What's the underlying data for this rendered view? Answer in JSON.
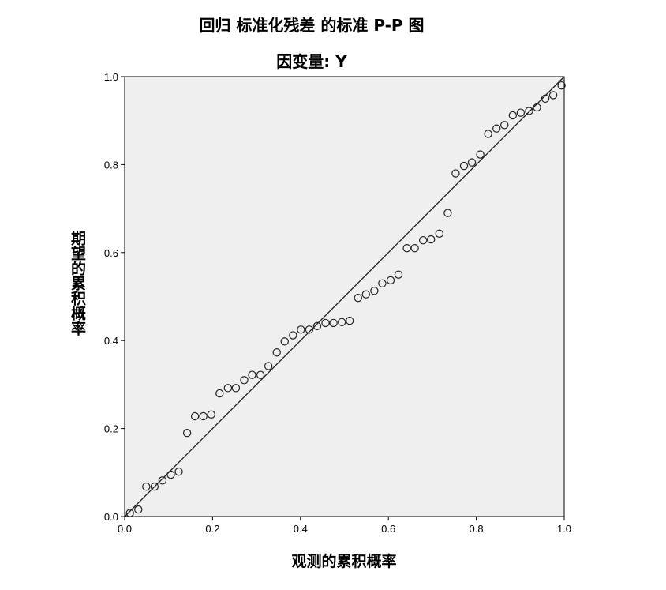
{
  "chart_data": {
    "type": "scatter",
    "title": "回归 标准化残差 的标准 P-P 图",
    "subtitle": "因变量: Y",
    "xlabel": "观测的累积概率",
    "ylabel": "期望的累积概率",
    "xlim": [
      0.0,
      1.0
    ],
    "ylim": [
      0.0,
      1.0
    ],
    "xticks": [
      "0.0",
      "0.2",
      "0.4",
      "0.6",
      "0.8",
      "1.0"
    ],
    "yticks": [
      "0.0",
      "0.2",
      "0.4",
      "0.6",
      "0.8",
      "1.0"
    ],
    "reference_line": [
      [
        0.0,
        0.0
      ],
      [
        1.0,
        1.0
      ]
    ],
    "plot_background": "#efefef",
    "marker": "open-circle",
    "grid": false,
    "points": [
      [
        0.012,
        0.008
      ],
      [
        0.031,
        0.016
      ],
      [
        0.049,
        0.068
      ],
      [
        0.068,
        0.068
      ],
      [
        0.086,
        0.082
      ],
      [
        0.105,
        0.095
      ],
      [
        0.123,
        0.102
      ],
      [
        0.142,
        0.19
      ],
      [
        0.16,
        0.228
      ],
      [
        0.179,
        0.228
      ],
      [
        0.197,
        0.232
      ],
      [
        0.216,
        0.28
      ],
      [
        0.235,
        0.292
      ],
      [
        0.253,
        0.292
      ],
      [
        0.272,
        0.31
      ],
      [
        0.29,
        0.322
      ],
      [
        0.309,
        0.322
      ],
      [
        0.327,
        0.342
      ],
      [
        0.346,
        0.373
      ],
      [
        0.364,
        0.398
      ],
      [
        0.383,
        0.412
      ],
      [
        0.401,
        0.425
      ],
      [
        0.42,
        0.425
      ],
      [
        0.438,
        0.433
      ],
      [
        0.457,
        0.44
      ],
      [
        0.475,
        0.44
      ],
      [
        0.494,
        0.442
      ],
      [
        0.512,
        0.445
      ],
      [
        0.531,
        0.497
      ],
      [
        0.549,
        0.505
      ],
      [
        0.568,
        0.513
      ],
      [
        0.586,
        0.53
      ],
      [
        0.605,
        0.537
      ],
      [
        0.623,
        0.55
      ],
      [
        0.642,
        0.61
      ],
      [
        0.66,
        0.61
      ],
      [
        0.679,
        0.628
      ],
      [
        0.697,
        0.63
      ],
      [
        0.716,
        0.643
      ],
      [
        0.735,
        0.69
      ],
      [
        0.753,
        0.78
      ],
      [
        0.772,
        0.797
      ],
      [
        0.79,
        0.805
      ],
      [
        0.809,
        0.823
      ],
      [
        0.827,
        0.87
      ],
      [
        0.846,
        0.882
      ],
      [
        0.864,
        0.89
      ],
      [
        0.883,
        0.912
      ],
      [
        0.901,
        0.918
      ],
      [
        0.92,
        0.922
      ],
      [
        0.938,
        0.93
      ],
      [
        0.957,
        0.95
      ],
      [
        0.975,
        0.958
      ],
      [
        0.994,
        0.98
      ]
    ]
  }
}
